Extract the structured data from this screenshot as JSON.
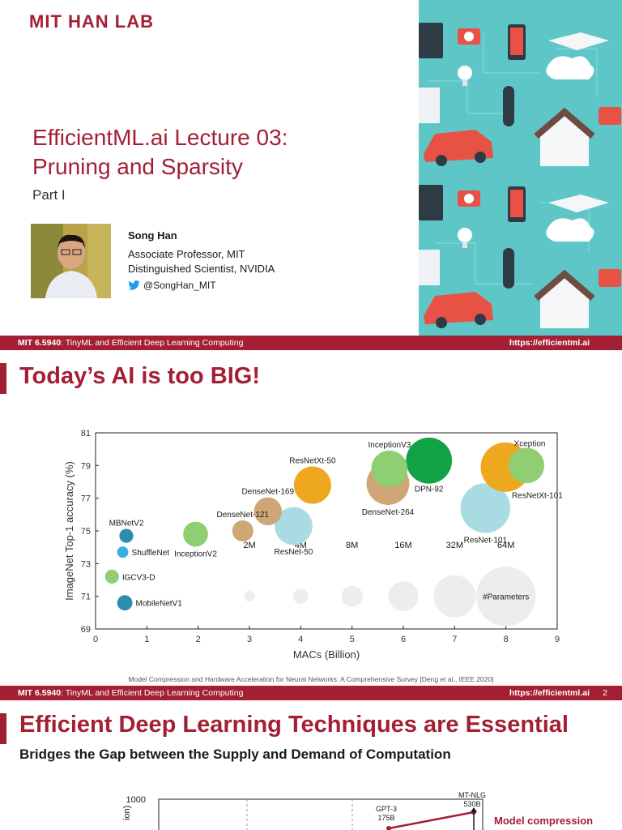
{
  "slide1": {
    "logo": "MIT HAN LAB",
    "title_line1": "EfficientML.ai Lecture 03:",
    "title_line2": "Pruning and Sparsity",
    "subtitle": "Part I",
    "author": "Song Han",
    "position1": "Associate Professor, MIT",
    "position2": "Distinguished Scientist, NVIDIA",
    "twitter": "@SongHan_MIT",
    "footer_course_code": "MIT 6.5940",
    "footer_course_name": ": TinyML and Efficient Deep Learning Computing",
    "footer_url": "https://efficientml.ai"
  },
  "slide2": {
    "title": "Today’s AI is too BIG!",
    "citation": "Model Compression and Hardware Acceleration for Neural Networks: A Comprehensive Survey [Deng et al., IEEE 2020]",
    "footer_course_code": "MIT 6.5940",
    "footer_course_name": ": TinyML and Efficient Deep Learning Computing",
    "footer_url": "https://efficientml.ai",
    "page_number": "2"
  },
  "slide3": {
    "title": "Efficient Deep Learning Techniques are Essential",
    "subtitle": "Bridges the Gap between the Supply and Demand of Computation",
    "chart_ytick_top": "1000",
    "chart_ylabel_partial": "ion)",
    "point1_label": "GPT-3",
    "point1_value": "175B",
    "point2_label": "MT-NLG",
    "point2_value": "530B",
    "legend_label": "Model compression",
    "colors": {
      "accent": "#a31f34"
    }
  },
  "chart_data": {
    "type": "scatter",
    "xlabel": "MACs (Billion)",
    "ylabel": "ImageNet Top-1 accuracy (%)",
    "xlim": [
      0,
      9
    ],
    "ylim": [
      69,
      81
    ],
    "xticks": [
      "0",
      "1",
      "2",
      "3",
      "4",
      "5",
      "6",
      "7",
      "8",
      "9"
    ],
    "yticks": [
      "69",
      "71",
      "73",
      "75",
      "77",
      "79",
      "81"
    ],
    "points": [
      {
        "name": "MBNetV2",
        "x": 0.6,
        "y": 74.7,
        "params_m": 3.5,
        "color": "#2a8fae",
        "label_pos": "above"
      },
      {
        "name": "ShuffleNet",
        "x": 0.53,
        "y": 73.7,
        "params_m": 2.3,
        "color": "#3aafdc",
        "label_pos": "right"
      },
      {
        "name": "IGCV3-D",
        "x": 0.32,
        "y": 72.2,
        "params_m": 3.5,
        "color": "#8fce72",
        "label_pos": "right"
      },
      {
        "name": "MobileNetV1",
        "x": 0.57,
        "y": 70.6,
        "params_m": 4.2,
        "color": "#2a8fae",
        "label_pos": "right"
      },
      {
        "name": "InceptionV2",
        "x": 1.95,
        "y": 74.8,
        "params_m": 11.2,
        "color": "#8fce72",
        "label_pos": "below"
      },
      {
        "name": "DenseNet-121",
        "x": 2.87,
        "y": 75.0,
        "params_m": 8,
        "color": "#cfa675",
        "label_pos": "above"
      },
      {
        "name": "DenseNet-169",
        "x": 3.36,
        "y": 76.2,
        "params_m": 14,
        "color": "#cfa675",
        "label_pos": "above"
      },
      {
        "name": "ResNet-50",
        "x": 3.86,
        "y": 75.3,
        "params_m": 25.6,
        "color": "#a8dce2",
        "label_pos": "below"
      },
      {
        "name": "ResNetXt-50",
        "x": 4.23,
        "y": 77.8,
        "params_m": 25,
        "color": "#eea820",
        "label_pos": "above"
      },
      {
        "name": "InceptionV3",
        "x": 5.73,
        "y": 78.8,
        "params_m": 23.8,
        "color": "#8fce72",
        "label_pos": "above"
      },
      {
        "name": "DenseNet-264",
        "x": 5.7,
        "y": 77.9,
        "params_m": 33,
        "color": "#cfa675",
        "label_pos": "below"
      },
      {
        "name": "DPN-92",
        "x": 6.5,
        "y": 79.3,
        "params_m": 38,
        "color": "#0fa346",
        "label_pos": "below"
      },
      {
        "name": "ResNet-101",
        "x": 7.6,
        "y": 76.4,
        "params_m": 44.5,
        "color": "#a8dce2",
        "label_pos": "below"
      },
      {
        "name": "ResNetXt-101",
        "x": 7.99,
        "y": 78.9,
        "params_m": 44,
        "color": "#eea820",
        "label_pos": "below"
      },
      {
        "name": "Xception",
        "x": 8.4,
        "y": 79.0,
        "params_m": 22.8,
        "color": "#8fce72",
        "label_pos": "above"
      }
    ],
    "size_legend": {
      "title": "#Parameters",
      "items": [
        {
          "label": "2M",
          "x": 3.0,
          "params_m": 2
        },
        {
          "label": "4M",
          "x": 4.0,
          "params_m": 4
        },
        {
          "label": "8M",
          "x": 5.0,
          "params_m": 8
        },
        {
          "label": "16M",
          "x": 6.0,
          "params_m": 16
        },
        {
          "label": "32M",
          "x": 7.0,
          "params_m": 32
        },
        {
          "label": "64M",
          "x": 8.0,
          "params_m": 64
        }
      ],
      "y": 71
    },
    "grid": false
  }
}
